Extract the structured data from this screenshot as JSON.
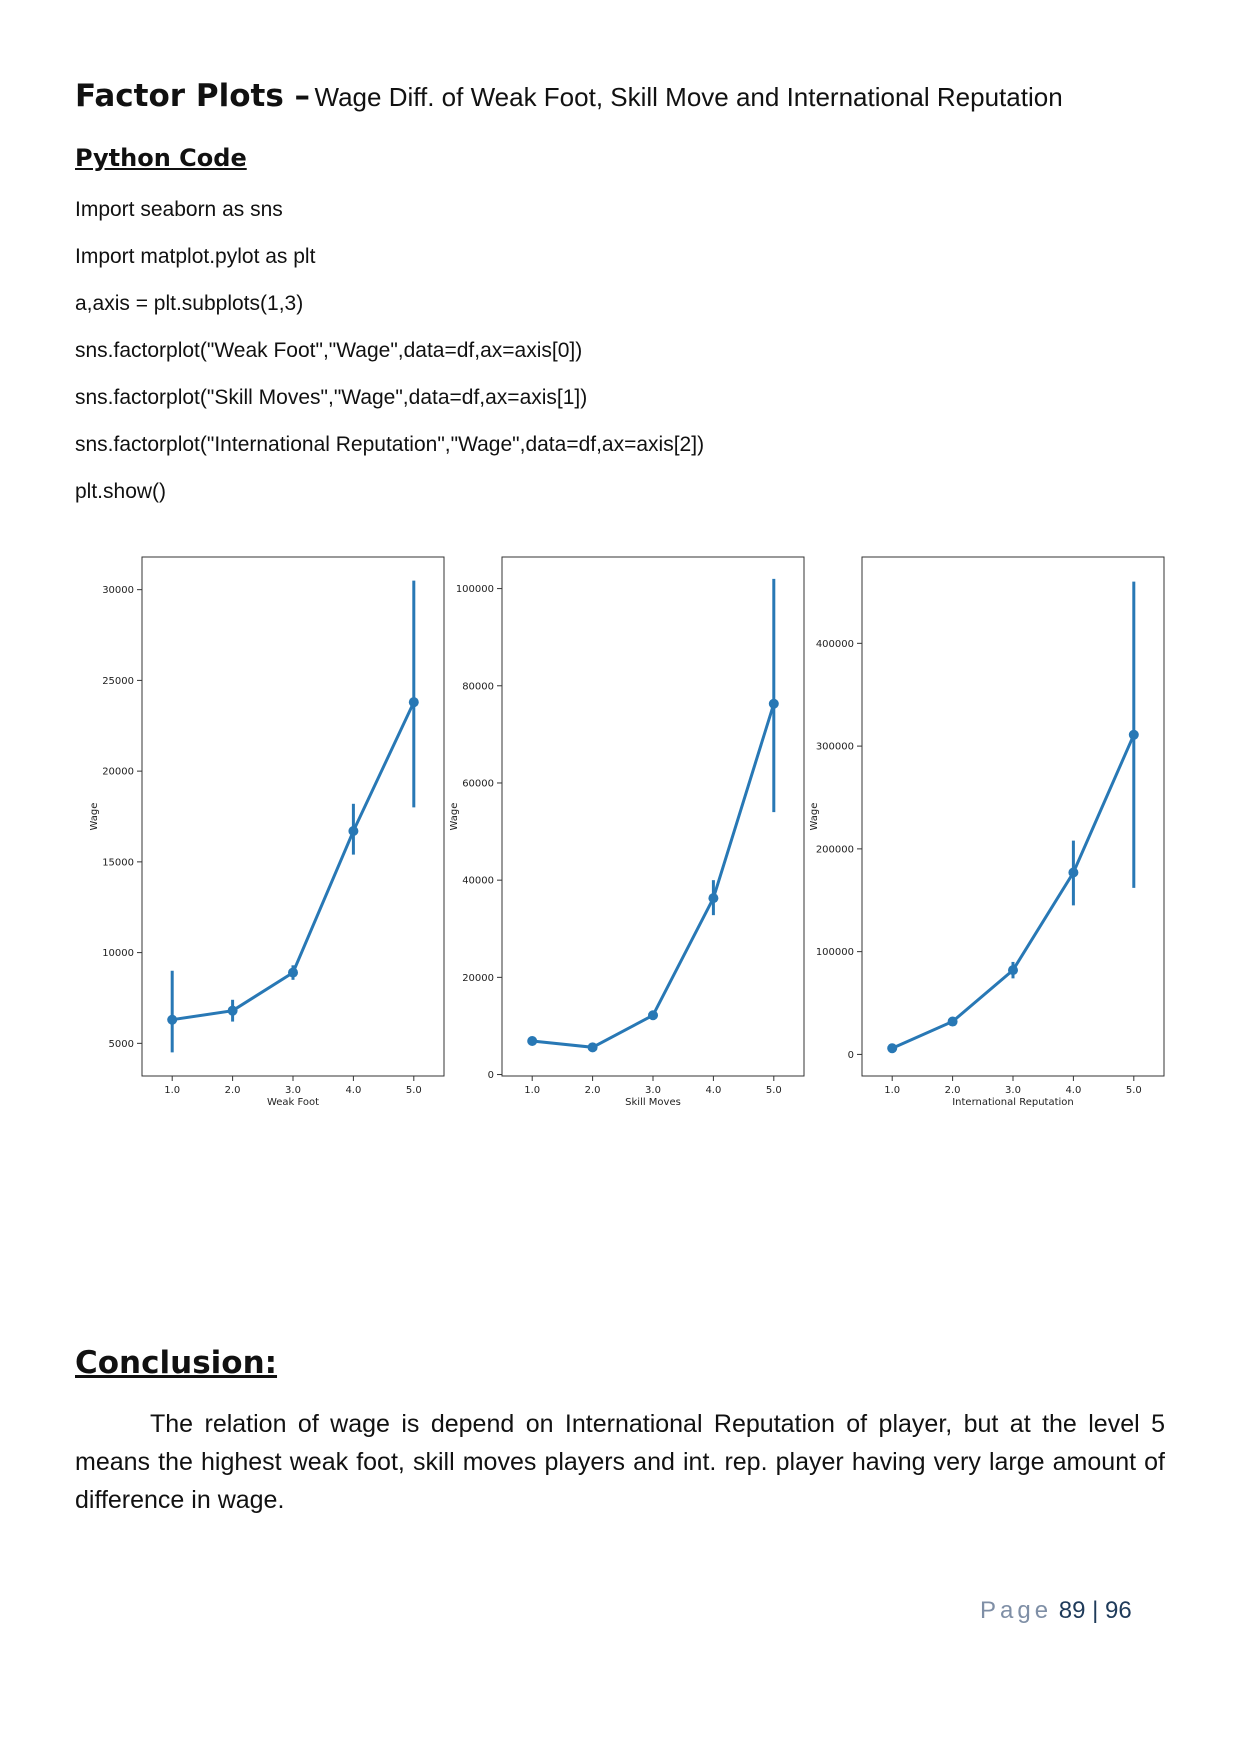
{
  "heading": {
    "main": "Factor Plots –",
    "sub": "Wage Diff. of Weak Foot, Skill Move and International Reputation"
  },
  "code_heading": "Python Code",
  "code_lines": [
    "Import seaborn as sns",
    "Import matplot.pylot as plt",
    "a,axis = plt.subplots(1,3)",
    "sns.factorplot(\"Weak Foot\",\"Wage\",data=df,ax=axis[0])",
    "sns.factorplot(\"Skill Moves\",\"Wage\",data=df,ax=axis[1])",
    "sns.factorplot(\"International Reputation\",\"Wage\",data=df,ax=axis[2])",
    "plt.show()"
  ],
  "chart_data": [
    {
      "type": "line",
      "xlabel": "Weak Foot",
      "ylabel": "Wage",
      "x": [
        "1.0",
        "2.0",
        "3.0",
        "4.0",
        "5.0"
      ],
      "values": [
        6300,
        6800,
        8900,
        16700,
        23800
      ],
      "err_low": [
        4500,
        6200,
        8500,
        15400,
        18000
      ],
      "err_high": [
        9000,
        7400,
        9300,
        18200,
        30500
      ],
      "yticks": [
        5000,
        10000,
        15000,
        20000,
        25000,
        30000
      ],
      "ylim": [
        3200,
        31800
      ],
      "color": "#2878b5"
    },
    {
      "type": "line",
      "xlabel": "Skill Moves",
      "ylabel": "Wage",
      "x": [
        "1.0",
        "2.0",
        "3.0",
        "4.0",
        "5.0"
      ],
      "values": [
        6900,
        5600,
        12200,
        36300,
        76300
      ],
      "err_low": [
        6500,
        5200,
        11700,
        32800,
        54000
      ],
      "err_high": [
        7300,
        6000,
        12700,
        40000,
        102000
      ],
      "yticks": [
        0,
        20000,
        40000,
        60000,
        80000,
        100000
      ],
      "ylim": [
        -300,
        106500
      ],
      "color": "#2878b5"
    },
    {
      "type": "line",
      "xlabel": "International Reputation",
      "ylabel": "Wage",
      "x": [
        "1.0",
        "2.0",
        "3.0",
        "4.0",
        "5.0"
      ],
      "values": [
        6000,
        32000,
        82000,
        177000,
        311000
      ],
      "err_low": [
        5500,
        30000,
        74000,
        145000,
        162000
      ],
      "err_high": [
        6500,
        34000,
        90000,
        208000,
        460000
      ],
      "yticks": [
        0,
        100000,
        200000,
        300000,
        400000
      ],
      "ylim": [
        -21000,
        484000
      ],
      "color": "#2878b5"
    }
  ],
  "conclusion_heading": "Conclusion:",
  "conclusion_text": "The relation of wage is depend on International Reputation of player, but at the level 5 means the highest weak foot, skill moves players and int. rep. player having very large amount of difference in wage.",
  "footer": {
    "page_word": "Page",
    "page_number": "89 | 96"
  }
}
